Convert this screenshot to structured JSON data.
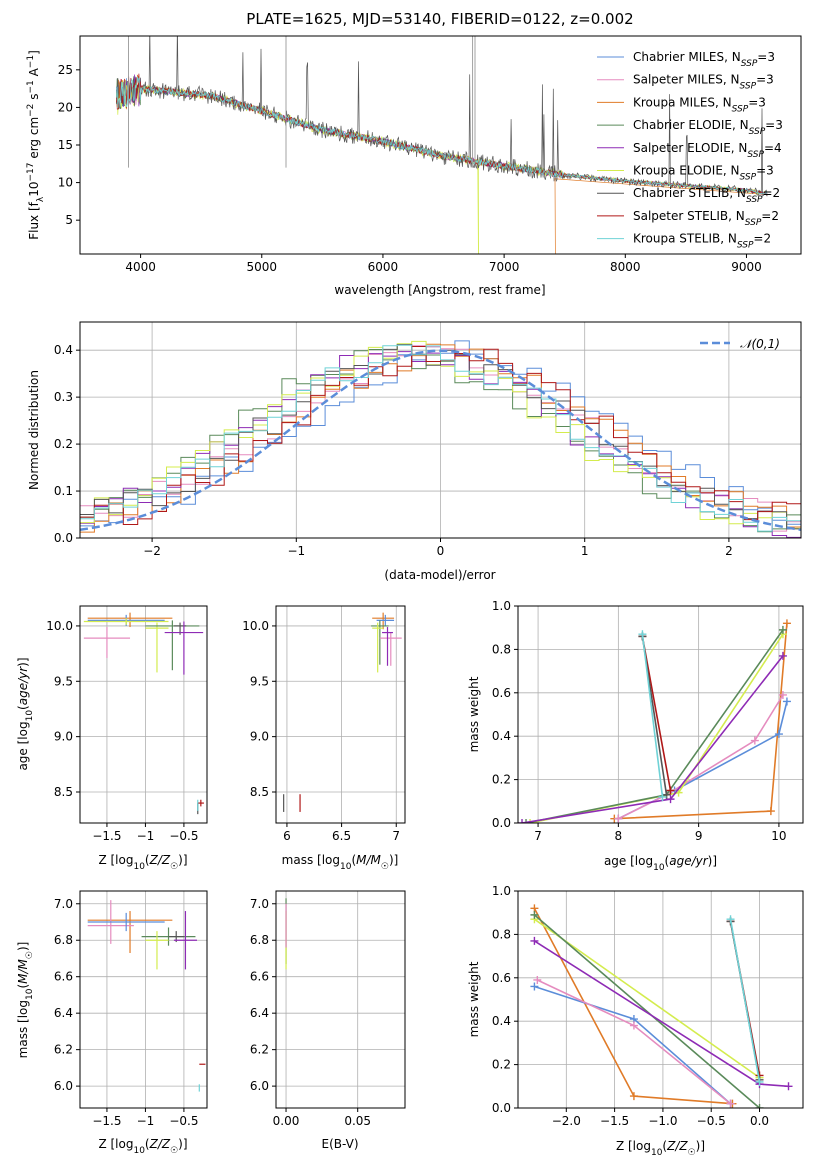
{
  "title": "PLATE=1625, MJD=53140, FIBERID=0122, z=0.002",
  "colors": {
    "chabrier_miles": "#5b8dd9",
    "salpeter_miles": "#e58cbf",
    "kroupa_miles": "#e07b28",
    "chabrier_elodie": "#5a8a5a",
    "salpeter_elodie": "#8e2bb5",
    "kroupa_elodie": "#d4ec4e",
    "chabrier_stelib": "#555555",
    "salpeter_stelib": "#b01818",
    "kroupa_stelib": "#6fd2d6",
    "normal_curve": "#5b8dd9"
  },
  "chart_data": [
    {
      "id": "spectrum",
      "type": "line",
      "xlabel": "wavelength [Angstrom, rest frame]",
      "ylabel": "Flux [f_λ10^-17 erg cm^-2 s^-1 A^-1]",
      "xlim": [
        3500,
        9450
      ],
      "ylim": [
        0.5,
        29.5
      ],
      "xticks": [
        4000,
        5000,
        6000,
        7000,
        8000,
        9000
      ],
      "yticks": [
        5,
        10,
        15,
        20,
        25
      ],
      "legend_position": "top-right",
      "legend": [
        {
          "key": "chabrier_miles",
          "label": "Chabrier MILES, N",
          "sub": "SSP",
          "tail": "=3"
        },
        {
          "key": "salpeter_miles",
          "label": "Salpeter MILES, N",
          "sub": "SSP",
          "tail": "=3"
        },
        {
          "key": "kroupa_miles",
          "label": "Kroupa MILES, N",
          "sub": "SSP",
          "tail": "=3"
        },
        {
          "key": "chabrier_elodie",
          "label": "Chabrier ELODIE, N",
          "sub": "SSP",
          "tail": "=3"
        },
        {
          "key": "salpeter_elodie",
          "label": "Salpeter ELODIE, N",
          "sub": "SSP",
          "tail": "=4"
        },
        {
          "key": "kroupa_elodie",
          "label": "Kroupa ELODIE, N",
          "sub": "SSP",
          "tail": "=3"
        },
        {
          "key": "chabrier_stelib",
          "label": "Chabrier STELIB, N",
          "sub": "SSP",
          "tail": "=2"
        },
        {
          "key": "salpeter_stelib",
          "label": "Salpeter STELIB, N",
          "sub": "SSP",
          "tail": "=2"
        },
        {
          "key": "kroupa_stelib",
          "label": "Kroupa STELIB, N",
          "sub": "SSP",
          "tail": "=2"
        }
      ],
      "continuum": [
        [
          3800,
          21.5
        ],
        [
          4000,
          22.5
        ],
        [
          4300,
          22.0
        ],
        [
          4600,
          21.5
        ],
        [
          5000,
          19.5
        ],
        [
          5500,
          17.0
        ],
        [
          6000,
          15.5
        ],
        [
          6500,
          13.5
        ],
        [
          7000,
          12.2
        ],
        [
          7500,
          11.0
        ],
        [
          8000,
          10.2
        ],
        [
          8500,
          9.6
        ],
        [
          9000,
          9.0
        ],
        [
          9170,
          8.5
        ]
      ]
    },
    {
      "id": "residual_hist",
      "type": "histogram",
      "xlabel": "(data-model)/error",
      "ylabel": "Normed distribution",
      "xlim": [
        -2.5,
        2.5
      ],
      "ylim": [
        0,
        0.46
      ],
      "xticks": [
        -2,
        -1,
        0,
        1,
        2
      ],
      "yticks": [
        0.0,
        0.1,
        0.2,
        0.3,
        0.4
      ],
      "bin_width": 0.1,
      "legend_label": "𝒩(0,1)",
      "legend_position": "top-right",
      "curve": "normal pdf mean 0 sigma 1",
      "base_profile": [
        0.05,
        0.06,
        0.07,
        0.08,
        0.09,
        0.1,
        0.11,
        0.12,
        0.13,
        0.14,
        0.16,
        0.17,
        0.19,
        0.21,
        0.22,
        0.24,
        0.26,
        0.27,
        0.29,
        0.3,
        0.32,
        0.33,
        0.34,
        0.35,
        0.36,
        0.37,
        0.37,
        0.38,
        0.38,
        0.39,
        0.38,
        0.37,
        0.37,
        0.36,
        0.35,
        0.34,
        0.33,
        0.32,
        0.3,
        0.29,
        0.27,
        0.26,
        0.24,
        0.22,
        0.21,
        0.19,
        0.17,
        0.16,
        0.14,
        0.13,
        0.12
      ],
      "series_shift": {
        "chabrier_miles": 0.1,
        "salpeter_miles": -0.05,
        "kroupa_miles": 0.0,
        "chabrier_elodie": -0.3,
        "salpeter_elodie": -0.2,
        "kroupa_elodie": -0.25,
        "chabrier_stelib": -0.1,
        "salpeter_stelib": 0.05,
        "kroupa_stelib": -0.15
      }
    },
    {
      "id": "age_vs_Z",
      "type": "errorbar",
      "xlabel": "Z [log10(Z/Z☉)]",
      "ylabel": "age  [log10(age/yr)]",
      "xlim": [
        -1.85,
        -0.2
      ],
      "ylim": [
        8.22,
        10.18
      ],
      "xticks": [
        -1.5,
        -1.0,
        -0.5
      ],
      "yticks": [
        8.5,
        9.0,
        9.5,
        10.0
      ],
      "points": [
        {
          "key": "kroupa_miles",
          "x": -1.2,
          "y": 10.07,
          "xerr": 0.55,
          "yerr": [
            0.05,
            0.08
          ]
        },
        {
          "key": "chabrier_miles",
          "x": -1.25,
          "y": 10.05,
          "xerr": 0.5,
          "yerr": [
            0.05,
            0.05
          ]
        },
        {
          "key": "kroupa_elodie",
          "x": -1.25,
          "y": 10.04,
          "xerr": 0.55,
          "yerr": [
            0.03,
            0.03
          ]
        },
        {
          "key": "salpeter_miles",
          "x": -1.5,
          "y": 9.89,
          "xerr": 0.3,
          "yerr": [
            0.1,
            0.18
          ]
        },
        {
          "key": "kroupa_elodie",
          "x": -0.85,
          "y": 9.98,
          "xerr": 0.15,
          "yerr": [
            0.05,
            0.4
          ]
        },
        {
          "key": "chabrier_elodie",
          "x": -0.65,
          "y": 10.0,
          "xerr": 0.35,
          "yerr": [
            0.05,
            0.4
          ]
        },
        {
          "key": "chabrier_stelib",
          "x": -0.55,
          "y": 10.0,
          "xerr": 0.08,
          "yerr": [
            0.03,
            0.08
          ]
        },
        {
          "key": "salpeter_elodie",
          "x": -0.5,
          "y": 9.94,
          "xerr": 0.25,
          "yerr": [
            0.1,
            0.38
          ]
        },
        {
          "key": "salpeter_stelib",
          "x": -0.28,
          "y": 8.4,
          "xerr": 0.04,
          "yerr": [
            0.03,
            0.03
          ]
        },
        {
          "key": "chabrier_stelib",
          "x": -0.32,
          "y": 8.35,
          "xerr": 0.0,
          "yerr": [
            0.05,
            0.05
          ]
        },
        {
          "key": "kroupa_stelib",
          "x": -0.32,
          "y": 8.38,
          "xerr": 0.0,
          "yerr": [
            0.05,
            0.05
          ]
        }
      ]
    },
    {
      "id": "age_vs_mass",
      "type": "errorbar",
      "xlabel": "mass [log10(M/M☉)]",
      "xlim": [
        5.9,
        7.08
      ],
      "ylim": [
        8.22,
        10.18
      ],
      "xticks": [
        6.0,
        6.5,
        7.0
      ],
      "yticks": [
        8.5,
        9.0,
        9.5,
        10.0
      ],
      "points": [
        {
          "key": "kroupa_miles",
          "x": 6.88,
          "y": 10.07,
          "xerr": 0.1,
          "yerr": [
            0.05,
            0.1
          ]
        },
        {
          "key": "chabrier_miles",
          "x": 6.9,
          "y": 10.05,
          "xerr": 0.08,
          "yerr": [
            0.05,
            0.05
          ]
        },
        {
          "key": "chabrier_elodie",
          "x": 6.85,
          "y": 10.0,
          "xerr": 0.08,
          "yerr": [
            0.05,
            0.35
          ]
        },
        {
          "key": "kroupa_elodie",
          "x": 6.83,
          "y": 9.98,
          "xerr": 0.05,
          "yerr": [
            0.05,
            0.4
          ]
        },
        {
          "key": "salpeter_miles",
          "x": 6.95,
          "y": 9.89,
          "xerr": 0.1,
          "yerr": [
            0.05,
            0.25
          ]
        },
        {
          "key": "salpeter_elodie",
          "x": 6.92,
          "y": 9.94,
          "xerr": 0.05,
          "yerr": [
            0.05,
            0.3
          ]
        },
        {
          "key": "chabrier_stelib",
          "x": 5.97,
          "y": 8.4,
          "xerr": 0.0,
          "yerr": [
            0.08,
            0.08
          ]
        },
        {
          "key": "salpeter_stelib",
          "x": 6.12,
          "y": 8.4,
          "xerr": 0.0,
          "yerr": [
            0.08,
            0.08
          ]
        }
      ]
    },
    {
      "id": "weight_vs_age",
      "type": "line",
      "xlabel": "age  [log10(age/yr)]",
      "ylabel": "mass weight",
      "xlim": [
        6.75,
        10.3
      ],
      "ylim": [
        0,
        1
      ],
      "xticks": [
        7,
        8,
        9,
        10
      ],
      "yticks": [
        0.0,
        0.2,
        0.4,
        0.6,
        0.8,
        1.0
      ],
      "series": [
        {
          "key": "kroupa_miles",
          "points": [
            [
              10.1,
              0.92
            ],
            [
              9.9,
              0.055
            ],
            [
              7.95,
              0.02
            ]
          ]
        },
        {
          "key": "chabrier_miles",
          "points": [
            [
              10.1,
              0.56
            ],
            [
              10.0,
              0.41
            ],
            [
              8.7,
              0.15
            ],
            [
              8.0,
              0.02
            ]
          ]
        },
        {
          "key": "salpeter_miles",
          "points": [
            [
              10.05,
              0.59
            ],
            [
              9.7,
              0.38
            ],
            [
              8.6,
              0.13
            ],
            [
              8.0,
              0.02
            ]
          ]
        },
        {
          "key": "kroupa_elodie",
          "points": [
            [
              10.05,
              0.87
            ],
            [
              8.75,
              0.14
            ],
            [
              6.9,
              0.0
            ]
          ]
        },
        {
          "key": "chabrier_elodie",
          "points": [
            [
              10.05,
              0.89
            ],
            [
              8.6,
              0.13
            ],
            [
              6.85,
              0.0
            ]
          ]
        },
        {
          "key": "salpeter_elodie",
          "points": [
            [
              10.05,
              0.77
            ],
            [
              8.65,
              0.11
            ],
            [
              6.8,
              0.0
            ]
          ]
        },
        {
          "key": "salpeter_stelib",
          "points": [
            [
              8.3,
              0.86
            ],
            [
              8.65,
              0.15
            ]
          ]
        },
        {
          "key": "chabrier_stelib",
          "points": [
            [
              8.3,
              0.86
            ],
            [
              8.6,
              0.13
            ]
          ]
        },
        {
          "key": "kroupa_stelib",
          "points": [
            [
              8.3,
              0.87
            ],
            [
              8.55,
              0.12
            ]
          ]
        }
      ]
    },
    {
      "id": "mass_vs_Z",
      "type": "errorbar",
      "xlabel": "Z [log10(Z/Z☉)]",
      "ylabel": "mass [log10(M/M☉)]",
      "xlim": [
        -1.85,
        -0.2
      ],
      "ylim": [
        5.88,
        7.07
      ],
      "xticks": [
        -1.5,
        -1.0,
        -0.5
      ],
      "yticks": [
        6.0,
        6.2,
        6.4,
        6.6,
        6.8,
        7.0
      ],
      "points": [
        {
          "key": "kroupa_miles",
          "x": -1.2,
          "y": 6.91,
          "xerr": 0.55,
          "yerr": [
            0.05,
            0.18
          ]
        },
        {
          "key": "salpeter_miles",
          "x": -1.45,
          "y": 6.88,
          "xerr": 0.3,
          "yerr": [
            0.14,
            0.1
          ]
        },
        {
          "key": "chabrier_miles",
          "x": -1.25,
          "y": 6.9,
          "xerr": 0.5,
          "yerr": [
            0.05,
            0.05
          ]
        },
        {
          "key": "chabrier_elodie",
          "x": -0.7,
          "y": 6.82,
          "xerr": 0.35,
          "yerr": [
            0.05,
            0.05
          ]
        },
        {
          "key": "kroupa_elodie",
          "x": -0.85,
          "y": 6.8,
          "xerr": 0.15,
          "yerr": [
            0.05,
            0.16
          ]
        },
        {
          "key": "chabrier_stelib",
          "x": -0.6,
          "y": 6.82,
          "xerr": 0.1,
          "yerr": [
            0.03,
            0.03
          ]
        },
        {
          "key": "salpeter_elodie",
          "x": -0.48,
          "y": 6.8,
          "xerr": 0.15,
          "yerr": [
            0.16,
            0.16
          ]
        },
        {
          "key": "salpeter_stelib",
          "x": -0.26,
          "y": 6.12,
          "xerr": 0.04,
          "yerr": [
            0,
            0
          ]
        },
        {
          "key": "kroupa_stelib",
          "x": -0.3,
          "y": 5.99,
          "xerr": 0.0,
          "yerr": [
            0.02,
            0.02
          ]
        },
        {
          "key": "chabrier_stelib",
          "x": -0.3,
          "y": 5.94,
          "xerr": 0.0,
          "yerr": [
            0,
            0
          ]
        }
      ]
    },
    {
      "id": "mass_vs_ebv",
      "type": "errorbar",
      "xlabel": "E(B-V)",
      "xlim": [
        -0.007,
        0.083
      ],
      "ylim": [
        5.88,
        7.07
      ],
      "xticks": [
        0.0,
        0.05
      ],
      "yticks": [
        6.0,
        6.2,
        6.4,
        6.6,
        6.8,
        7.0
      ],
      "points": [
        {
          "key": "chabrier_elodie",
          "x": 0.0,
          "y": 6.85,
          "xerr": 0.0,
          "yerr": [
            0.18,
            0.18
          ]
        },
        {
          "key": "kroupa_elodie",
          "x": 0.0,
          "y": 6.8,
          "xerr": 0.0,
          "yerr": [
            0.16,
            0.16
          ]
        },
        {
          "key": "salpeter_miles",
          "x": 0.0,
          "y": 6.88,
          "xerr": 0.0,
          "yerr": [
            0.12,
            0.12
          ]
        }
      ]
    },
    {
      "id": "weight_vs_Z",
      "type": "line",
      "xlabel": "Z [log10(Z/Z☉)]",
      "ylabel": "mass weight",
      "xlim": [
        -2.5,
        0.45
      ],
      "ylim": [
        0,
        1
      ],
      "xticks": [
        -2.0,
        -1.5,
        -1.0,
        -0.5,
        0.0
      ],
      "yticks": [
        0.0,
        0.2,
        0.4,
        0.6,
        0.8,
        1.0
      ],
      "series": [
        {
          "key": "kroupa_miles",
          "points": [
            [
              -2.33,
              0.92
            ],
            [
              -1.3,
              0.055
            ],
            [
              -0.28,
              0.02
            ]
          ]
        },
        {
          "key": "chabrier_miles",
          "points": [
            [
              -2.33,
              0.56
            ],
            [
              -1.3,
              0.41
            ],
            [
              -0.3,
              0.02
            ]
          ]
        },
        {
          "key": "salpeter_miles",
          "points": [
            [
              -2.3,
              0.59
            ],
            [
              -1.3,
              0.38
            ],
            [
              -0.3,
              0.02
            ]
          ]
        },
        {
          "key": "kroupa_elodie",
          "points": [
            [
              -2.33,
              0.87
            ],
            [
              0.0,
              0.14
            ]
          ]
        },
        {
          "key": "chabrier_elodie",
          "points": [
            [
              -2.33,
              0.89
            ],
            [
              0.0,
              0.0
            ]
          ]
        },
        {
          "key": "salpeter_elodie",
          "points": [
            [
              -2.33,
              0.77
            ],
            [
              0.0,
              0.11
            ],
            [
              0.3,
              0.1
            ]
          ]
        },
        {
          "key": "salpeter_stelib",
          "points": [
            [
              -0.3,
              0.86
            ],
            [
              0.0,
              0.15
            ]
          ]
        },
        {
          "key": "chabrier_stelib",
          "points": [
            [
              -0.3,
              0.86
            ],
            [
              0.0,
              0.13
            ]
          ]
        },
        {
          "key": "kroupa_stelib",
          "points": [
            [
              -0.3,
              0.87
            ],
            [
              0.0,
              0.12
            ]
          ]
        }
      ]
    }
  ]
}
